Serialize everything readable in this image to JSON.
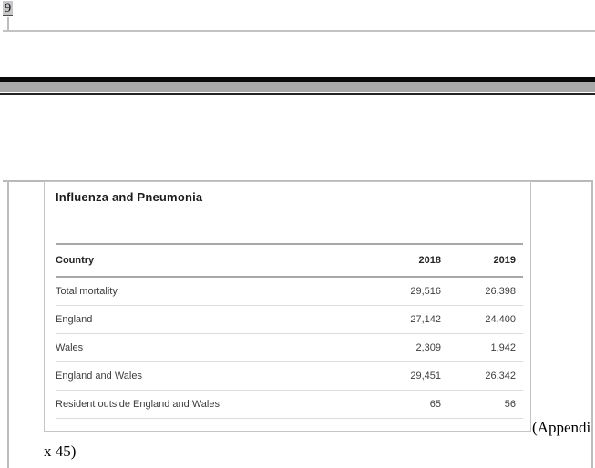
{
  "page_top": {
    "footnote_number": "9"
  },
  "embedded_table": {
    "title": "Influenza and Pneumonia",
    "columns": [
      "Country",
      "2018",
      "2019"
    ],
    "rows": [
      {
        "country": "Total mortality",
        "y2018": "29,516",
        "y2019": "26,398"
      },
      {
        "country": "England",
        "y2018": "27,142",
        "y2019": "24,400"
      },
      {
        "country": "Wales",
        "y2018": "2,309",
        "y2019": "1,942"
      },
      {
        "country": "England and Wales",
        "y2018": "29,451",
        "y2019": "26,342"
      },
      {
        "country": "Resident outside England and Wales",
        "y2018": "65",
        "y2019": "56"
      }
    ]
  },
  "caption": {
    "line1": "(Appendi",
    "line2": "x 45)"
  },
  "colors": {
    "highlight_gray": "#c7c7c7",
    "frame_border_gray": "#bdbdbd",
    "card_border_gray": "#c5c5c5",
    "rule_dark_gray": "#a8a8a8",
    "row_divider_gray": "#dcdcdc",
    "page_break_black": "#0a0a0a",
    "page_break_gray": "#a9a9a9"
  }
}
